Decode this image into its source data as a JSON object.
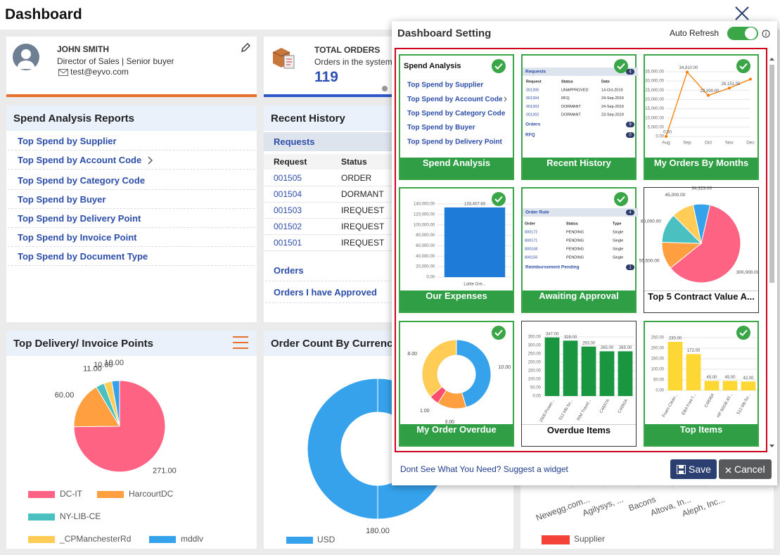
{
  "header": {
    "title": "Dashboard"
  },
  "profile": {
    "name": "JOHN SMITH",
    "role": "Director of Sales | Senior buyer",
    "email": "test@eyvo.com"
  },
  "total_orders": {
    "title": "TOTAL ORDERS",
    "subtitle": "Orders in the system",
    "value": "119"
  },
  "spend_reports": {
    "title": "Spend Analysis Reports",
    "items": [
      "Top Spend by Supplier",
      "Top Spend by Account Code",
      "Top Spend by Category Code",
      "Top Spend by Buyer",
      "Top Spend by Delivery Point",
      "Top Spend by Invoice Point",
      "Top Spend by Document Type"
    ]
  },
  "recent_history": {
    "title": "Recent History",
    "section": "Requests",
    "columns": [
      "Request",
      "Status"
    ],
    "rows": [
      [
        "001505",
        "ORDER"
      ],
      [
        "001504",
        "DORMANT"
      ],
      [
        "001503",
        "IREQUEST"
      ],
      [
        "001502",
        "IREQUEST"
      ],
      [
        "001501",
        "IREQUEST"
      ]
    ],
    "links": [
      "Orders",
      "Orders I have Approved"
    ]
  },
  "delivery_points": {
    "title": "Top Delivery/ Invoice Points",
    "chart": {
      "type": "pie",
      "categories": [
        "DC-IT",
        "HarcourtDC",
        "NY-LIB-CE",
        "_CPManchesterRd",
        "mddlv"
      ],
      "values": [
        271,
        60,
        11,
        10,
        10
      ],
      "value_labels": [
        "271.00",
        "60.00",
        "11.00",
        "10.00",
        "10.00"
      ],
      "colors": [
        "#ff6384",
        "#ff9f40",
        "#4bc0c0",
        "#ffcd56",
        "#36a2eb"
      ]
    }
  },
  "currency": {
    "title": "Order Count By Currency",
    "chart": {
      "type": "donut",
      "categories": [
        "USD"
      ],
      "values": [
        180
      ],
      "value_labels": [
        "180.00"
      ],
      "colors": [
        "#36a2eb"
      ]
    }
  },
  "supplier_chart": {
    "categories": [
      "Newegg.com...",
      "Agilysys, ...",
      "Bacons",
      "Altova, In...",
      "Aleph, Inc..."
    ],
    "legend": "Supplier",
    "color": "#f44336"
  },
  "modal": {
    "title": "Dashboard Setting",
    "auto_refresh": "Auto Refresh",
    "footer_link": "Dont See What You Need? Suggest a widget",
    "save": "Save",
    "cancel": "Cancel",
    "tiles": [
      {
        "title": "Spend Analysis",
        "selected": true,
        "heading": "Spend Analysis",
        "items": [
          "Top Spend by Supplier",
          "Top Spend by Account Code",
          "Top Spend by Category Code",
          "Top Spend by Buyer",
          "Top Spend by Delivery Point"
        ]
      },
      {
        "title": "Recent History",
        "selected": true,
        "table": {
          "section": "Requests",
          "count": "4",
          "columns": [
            "Request",
            "Status",
            "Date"
          ],
          "rows": [
            [
              "001305",
              "UNAPPROVED",
              "14-Oct-2019"
            ],
            [
              "001304",
              "RFQ",
              "24-Sep-2019"
            ],
            [
              "001303",
              "DORMANT",
              "24-Sep-2019"
            ],
            [
              "001302",
              "DORMANT",
              "23-Sep-2019"
            ]
          ],
          "links": [
            {
              "label": "Orders",
              "count": "9"
            },
            {
              "label": "RFQ",
              "count": "0"
            }
          ]
        }
      },
      {
        "title": "My Orders By Months",
        "selected": true,
        "chart": {
          "type": "line",
          "categories": [
            "Aug",
            "Sep",
            "Oct",
            "Nov",
            "Dec"
          ],
          "values": [
            0,
            34810,
            22200,
            26151,
            31000
          ],
          "value_labels": [
            "0.00",
            "34,810.00",
            "22,200.00",
            "26,151.00",
            null
          ],
          "color": "#f57c00",
          "ylim": [
            0,
            35000
          ],
          "yticks": [
            {
              "value": 0,
              "label": "0.00"
            },
            {
              "value": 5000,
              "label": "5,000.00"
            },
            {
              "value": 10000,
              "label": "10,000.00"
            },
            {
              "value": 15000,
              "label": "15,000.00"
            },
            {
              "value": 20000,
              "label": "20,000.00"
            },
            {
              "value": 25000,
              "label": "25,000.00"
            },
            {
              "value": 30000,
              "label": "30,000.00"
            },
            {
              "value": 35000,
              "label": "35,000.00"
            }
          ]
        }
      },
      {
        "title": "Our Expenses",
        "selected": true,
        "chart": {
          "type": "bar",
          "categories": [
            "Lottie Gre..."
          ],
          "values": [
            133407.83
          ],
          "value_labels": [
            "133,407.83"
          ],
          "color": "#1e7bd8",
          "ylim": [
            0,
            140000
          ],
          "yticks": [
            {
              "value": 0,
              "label": "0.00"
            },
            {
              "value": 20000,
              "label": "20,000.00"
            },
            {
              "value": 40000,
              "label": "40,000.00"
            },
            {
              "value": 60000,
              "label": "60,000.00"
            },
            {
              "value": 80000,
              "label": "80,000.00"
            },
            {
              "value": 100000,
              "label": "100,000.00"
            },
            {
              "value": 120000,
              "label": "120,000.00"
            },
            {
              "value": 140000,
              "label": "140,000.00"
            }
          ]
        }
      },
      {
        "title": "Awaiting Approval",
        "selected": true,
        "table": {
          "section": "Order Rule",
          "count": "4",
          "columns": [
            "Order",
            "Status",
            "Type"
          ],
          "rows": [
            [
              "800172",
              "PENDING",
              "Single"
            ],
            [
              "800171",
              "PENDING",
              "Single"
            ],
            [
              "800168",
              "PENDING",
              "Single"
            ],
            [
              "800156",
              "PENDING",
              "Single"
            ]
          ],
          "links": [
            {
              "label": "Reimbursement Pending",
              "count": "1"
            }
          ]
        }
      },
      {
        "title": "Top 5 Contract Value A...",
        "selected": false,
        "chart": {
          "type": "pie",
          "values": [
            34323,
            300000,
            55500,
            60000,
            45000
          ],
          "value_labels": [
            "34,323.00",
            "300,000.00",
            "55,500.00",
            "60,000.00",
            "45,000.00"
          ],
          "colors": [
            "#36a2eb",
            "#ff6384",
            "#ff9f40",
            "#4bc0c0",
            "#ffcd56"
          ]
        }
      },
      {
        "title": "My Order Overdue",
        "selected": true,
        "chart": {
          "type": "donut",
          "values": [
            10,
            3,
            1,
            8
          ],
          "value_labels": [
            "10.00",
            "3.00",
            "1.00",
            "8.00"
          ],
          "colors": [
            "#36a2eb",
            "#ff9f40",
            "#ff4d6d",
            "#ffcd56"
          ]
        }
      },
      {
        "title": "Overdue Items",
        "selected": false,
        "chart": {
          "type": "bar",
          "categories": [
            "2500 Power...",
            "512 Mb for...",
            "RIM Travel...",
            "C4837A",
            "C4092A"
          ],
          "values": [
            347,
            328,
            293,
            265,
            265
          ],
          "value_labels": [
            "347.00",
            "328.00",
            "293.00",
            "265.00",
            "265.00"
          ],
          "color": "#1a9641",
          "ylim": [
            0,
            350
          ],
          "yticks": [
            {
              "value": 0,
              "label": "0.00"
            },
            {
              "value": 50,
              "label": "50.00"
            },
            {
              "value": 100,
              "label": "100.00"
            },
            {
              "value": 150,
              "label": "150.00"
            },
            {
              "value": 200,
              "label": "200.00"
            },
            {
              "value": 250,
              "label": "250.00"
            },
            {
              "value": 300,
              "label": "300.00"
            },
            {
              "value": 350,
              "label": "350.00"
            }
          ]
        }
      },
      {
        "title": "Top Items",
        "selected": true,
        "chart": {
          "type": "bar",
          "categories": [
            "Foam Clean...",
            "EBA Free f...",
            "C4836A",
            "HP 60GB AT...",
            "512 Mb for..."
          ],
          "values": [
            230,
            172,
            45,
            45,
            42
          ],
          "value_labels": [
            "230.00",
            "172.00",
            "45.00",
            "45.00",
            "42.00"
          ],
          "color": "#fdd835",
          "ylim": [
            0,
            250
          ],
          "yticks": [
            {
              "value": 0,
              "label": "0.00"
            },
            {
              "value": 50,
              "label": "50.00"
            },
            {
              "value": 100,
              "label": "100.00"
            },
            {
              "value": 150,
              "label": "150.00"
            },
            {
              "value": 200,
              "label": "200.00"
            },
            {
              "value": 250,
              "label": "250.00"
            }
          ]
        }
      }
    ]
  }
}
